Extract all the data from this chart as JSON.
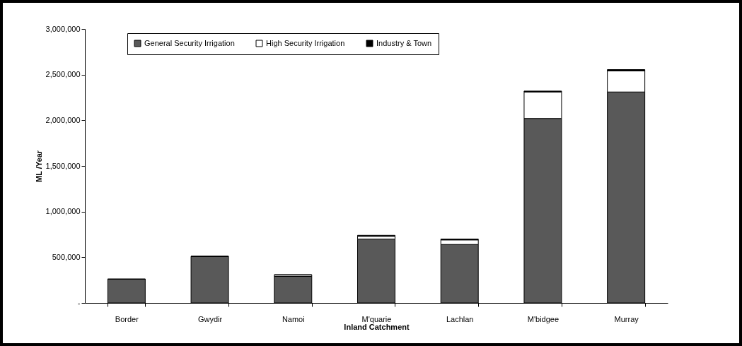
{
  "chart_data": {
    "type": "bar",
    "stacked": true,
    "xlabel": "Inland Catchment",
    "ylabel": "ML /Year",
    "categories": [
      "Border",
      "Gwydir",
      "Namoi",
      "M'quarie",
      "Lachlan",
      "M'bidgee",
      "Murray"
    ],
    "series": [
      {
        "name": "General Security Irrigation",
        "color": "#595959",
        "values": [
          260000,
          510000,
          290000,
          700000,
          640000,
          2020000,
          2310000
        ]
      },
      {
        "name": "High Security Irrigation",
        "color": "#ffffff",
        "values": [
          0,
          0,
          15000,
          30000,
          50000,
          290000,
          230000
        ]
      },
      {
        "name": "Industry & Town",
        "color": "#000000",
        "values": [
          0,
          0,
          5000,
          10000,
          10000,
          10000,
          15000
        ]
      }
    ],
    "ylim": [
      0,
      3000000
    ],
    "yticks": [
      {
        "value": 0,
        "label": "-"
      },
      {
        "value": 500000,
        "label": "500,000"
      },
      {
        "value": 1000000,
        "label": "1,000,000"
      },
      {
        "value": 1500000,
        "label": "1,500,000"
      },
      {
        "value": 2000000,
        "label": "2,000,000"
      },
      {
        "value": 2500000,
        "label": "2,500,000"
      },
      {
        "value": 3000000,
        "label": "3,000,000"
      }
    ],
    "grid": false,
    "legend": "top left"
  }
}
